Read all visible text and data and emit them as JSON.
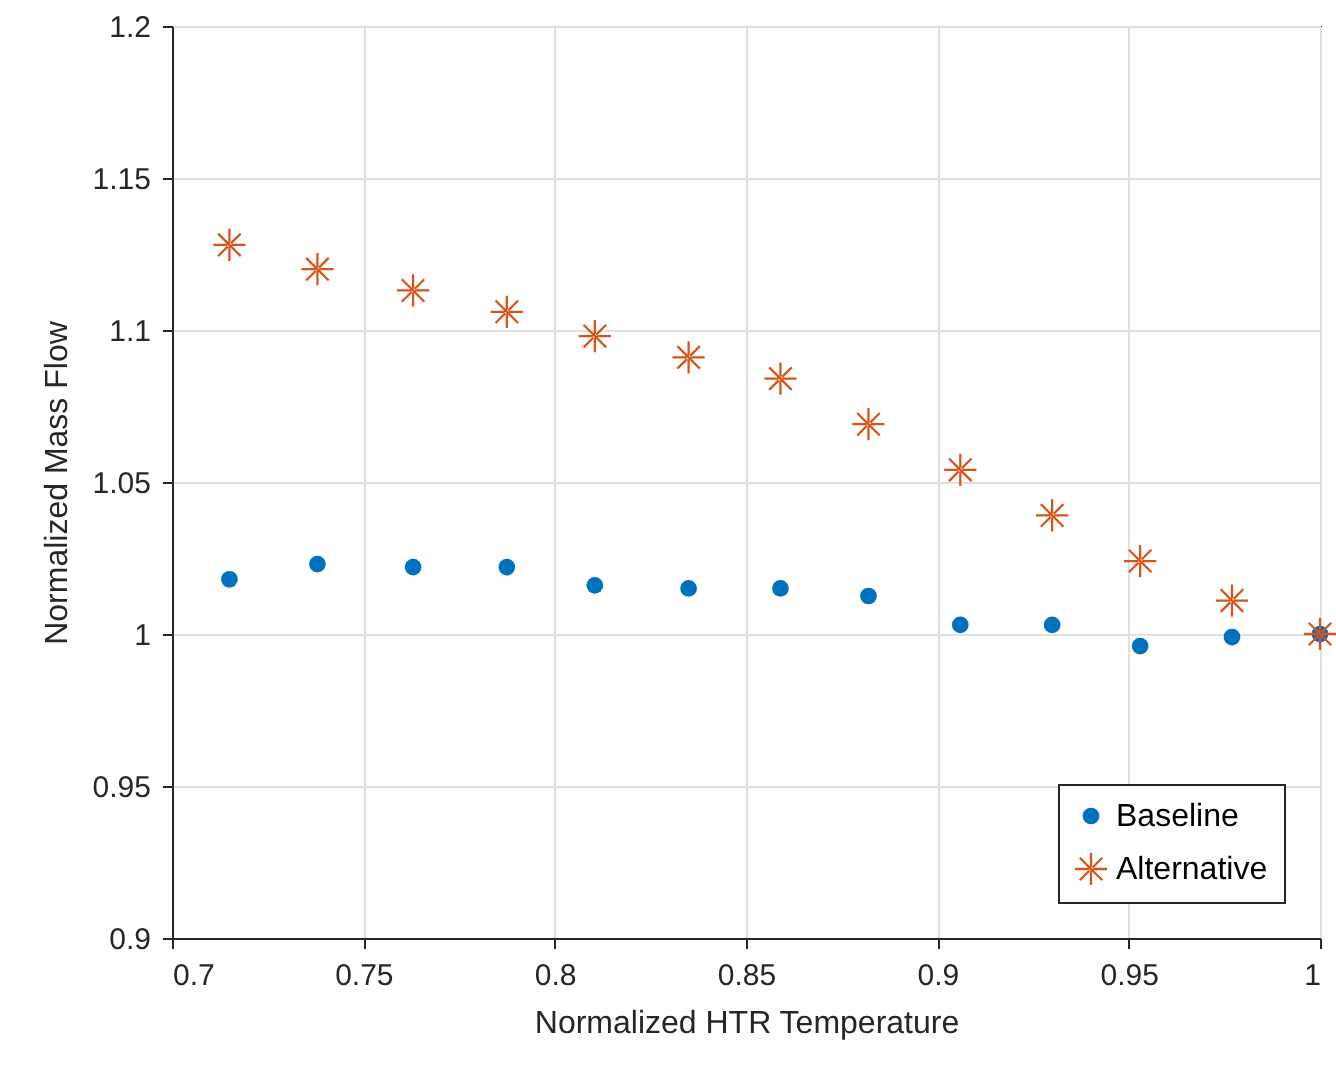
{
  "chart_data": {
    "type": "scatter",
    "xlabel": "Normalized HTR Temperature",
    "ylabel": "Normalized Mass Flow",
    "x": [
      0.715,
      0.738,
      0.763,
      0.7875,
      0.8105,
      0.835,
      0.859,
      0.882,
      0.906,
      0.93,
      0.953,
      0.977,
      1.0
    ],
    "series": [
      {
        "name": "Baseline",
        "color": "#0072bd",
        "marker": "circle",
        "values": [
          1.018,
          1.023,
          1.022,
          1.022,
          1.016,
          1.015,
          1.015,
          1.0125,
          1.003,
          1.003,
          0.996,
          0.999,
          1.0
        ]
      },
      {
        "name": "Alternative",
        "color": "#d95319",
        "marker": "star",
        "values": [
          1.128,
          1.12,
          1.113,
          1.106,
          1.098,
          1.091,
          1.084,
          1.069,
          1.054,
          1.039,
          1.024,
          1.011,
          1.0
        ]
      }
    ],
    "xlim": [
      0.7,
      1.0
    ],
    "xticks": [
      0.7,
      0.75,
      0.8,
      0.85,
      0.9,
      0.95,
      1
    ],
    "ylim": [
      0.9,
      1.2
    ],
    "yticks": [
      0.9,
      0.95,
      1,
      1.05,
      1.1,
      1.15,
      1.2
    ],
    "grid": true,
    "legend": "bottom right"
  }
}
